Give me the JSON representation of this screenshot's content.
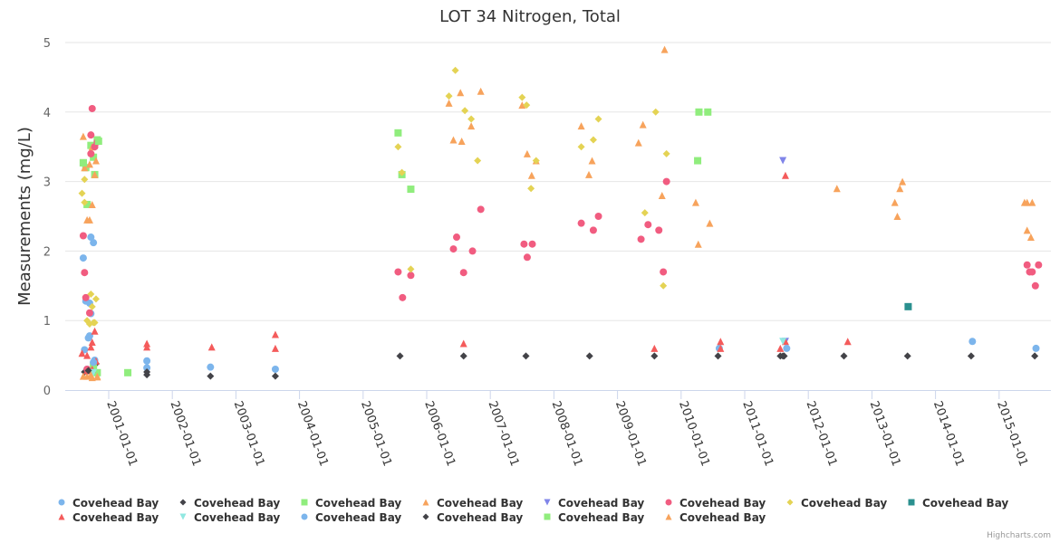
{
  "chart_data": {
    "type": "scatter",
    "title": "LOT 34 Nitrogen, Total",
    "xlabel": "",
    "ylabel": "Measurements (mg/L)",
    "ylim": [
      0,
      5
    ],
    "yticks": [
      "0",
      "1",
      "2",
      "3",
      "4",
      "5"
    ],
    "xlim": [
      "2000-04-20",
      "2015-11-20"
    ],
    "xticks": [
      "2001-01-01",
      "2002-01-01",
      "2003-01-01",
      "2004-01-01",
      "2005-01-01",
      "2006-01-01",
      "2007-01-01",
      "2008-01-01",
      "2009-01-01",
      "2010-01-01",
      "2011-01-01",
      "2012-01-01",
      "2013-01-01",
      "2014-01-01",
      "2015-01-01"
    ],
    "grid": true,
    "legend_position": "bottom",
    "credits": "Highcharts.com",
    "series": [
      {
        "name": "Covehead Bay",
        "color": "#7cb5ec",
        "symbol": "circle",
        "points": [
          [
            2000.6,
            1.9
          ],
          [
            2000.68,
            0.75
          ],
          [
            2000.7,
            1.25
          ],
          [
            2000.72,
            2.2
          ],
          [
            2000.76,
            2.12
          ],
          [
            2000.64,
            1.28
          ],
          [
            2000.7,
            0.78
          ],
          [
            2000.78,
            0.43
          ],
          [
            2000.62,
            0.58
          ],
          [
            2000.66,
            0.3
          ],
          [
            2000.72,
            1.1
          ],
          [
            2001.6,
            0.42
          ],
          [
            2001.6,
            0.32
          ],
          [
            2002.6,
            0.33
          ],
          [
            2003.62,
            0.3
          ],
          [
            2010.6,
            0.6
          ],
          [
            2014.58,
            0.7
          ]
        ]
      },
      {
        "name": "Covehead Bay",
        "color": "#434348",
        "symbol": "diamond",
        "points": [
          [
            2000.62,
            0.26
          ],
          [
            2000.72,
            0.28
          ],
          [
            2000.8,
            0.38
          ],
          [
            2001.6,
            0.26
          ],
          [
            2001.6,
            0.22
          ],
          [
            2002.6,
            0.2
          ],
          [
            2003.62,
            0.2
          ],
          [
            2005.58,
            0.49
          ],
          [
            2006.58,
            0.49
          ],
          [
            2007.56,
            0.49
          ],
          [
            2008.56,
            0.49
          ],
          [
            2009.58,
            0.49
          ],
          [
            2010.58,
            0.49
          ],
          [
            2011.56,
            0.49
          ],
          [
            2011.62,
            0.49
          ],
          [
            2012.56,
            0.49
          ],
          [
            2013.56,
            0.49
          ],
          [
            2014.56,
            0.49
          ],
          [
            2015.56,
            0.49
          ]
        ]
      },
      {
        "name": "Covehead Bay",
        "color": "#90ed7d",
        "symbol": "square",
        "points": [
          [
            2000.6,
            3.27
          ],
          [
            2000.64,
            3.2
          ],
          [
            2000.72,
            3.52
          ],
          [
            2000.76,
            3.35
          ],
          [
            2000.82,
            3.6
          ],
          [
            2000.78,
            3.1
          ],
          [
            2000.66,
            2.67
          ],
          [
            2000.76,
            0.35
          ],
          [
            2000.82,
            0.25
          ],
          [
            2001.3,
            0.25
          ],
          [
            2005.55,
            3.7
          ],
          [
            2005.61,
            3.1
          ],
          [
            2005.75,
            2.89
          ],
          [
            2010.26,
            3.3
          ],
          [
            2010.28,
            4.0
          ],
          [
            2010.42,
            4.0
          ]
        ]
      },
      {
        "name": "Covehead Bay",
        "color": "#f7a35c",
        "symbol": "triangle",
        "points": [
          [
            2000.6,
            3.65
          ],
          [
            2000.7,
            3.25
          ],
          [
            2000.8,
            3.3
          ],
          [
            2000.78,
            3.1
          ],
          [
            2000.62,
            3.2
          ],
          [
            2000.74,
            3.5
          ],
          [
            2000.66,
            2.45
          ],
          [
            2000.7,
            2.45
          ],
          [
            2000.74,
            2.67
          ],
          [
            2000.6,
            0.2
          ],
          [
            2000.66,
            0.2
          ],
          [
            2000.74,
            0.18
          ],
          [
            2000.82,
            0.2
          ],
          [
            2006.35,
            4.13
          ],
          [
            2006.53,
            4.28
          ],
          [
            2006.42,
            3.6
          ],
          [
            2006.55,
            3.58
          ],
          [
            2006.7,
            3.8
          ],
          [
            2006.85,
            4.3
          ],
          [
            2007.5,
            4.1
          ],
          [
            2007.58,
            3.4
          ],
          [
            2007.65,
            3.09
          ],
          [
            2007.72,
            3.3
          ],
          [
            2008.43,
            3.8
          ],
          [
            2008.55,
            3.1
          ],
          [
            2008.6,
            3.3
          ],
          [
            2009.33,
            3.56
          ],
          [
            2009.4,
            3.82
          ],
          [
            2009.7,
            2.8
          ],
          [
            2009.74,
            4.9
          ],
          [
            2010.23,
            2.7
          ],
          [
            2010.27,
            2.1
          ],
          [
            2010.45,
            2.4
          ],
          [
            2012.45,
            2.9
          ],
          [
            2013.36,
            2.7
          ],
          [
            2013.4,
            2.5
          ],
          [
            2013.44,
            2.9
          ],
          [
            2013.48,
            3.0
          ],
          [
            2015.4,
            2.7
          ],
          [
            2015.44,
            2.7
          ],
          [
            2015.52,
            2.7
          ],
          [
            2015.44,
            2.3
          ],
          [
            2015.5,
            2.2
          ]
        ]
      },
      {
        "name": "Covehead Bay",
        "color": "#8085e9",
        "symbol": "triangle-down",
        "points": [
          [
            2011.6,
            3.3
          ],
          [
            2011.64,
            0.7
          ]
        ]
      },
      {
        "name": "Covehead Bay",
        "color": "#f15c80",
        "symbol": "circle",
        "points": [
          [
            2000.74,
            4.05
          ],
          [
            2000.72,
            3.67
          ],
          [
            2000.82,
            3.57
          ],
          [
            2000.78,
            3.5
          ],
          [
            2000.72,
            3.4
          ],
          [
            2000.6,
            2.22
          ],
          [
            2000.62,
            1.69
          ],
          [
            2000.64,
            1.33
          ],
          [
            2000.7,
            1.11
          ],
          [
            2000.66,
            0.3
          ],
          [
            2005.55,
            1.7
          ],
          [
            2005.62,
            1.33
          ],
          [
            2005.75,
            1.65
          ],
          [
            2006.42,
            2.03
          ],
          [
            2006.47,
            2.2
          ],
          [
            2006.58,
            1.69
          ],
          [
            2006.72,
            2.0
          ],
          [
            2006.85,
            2.6
          ],
          [
            2007.53,
            2.1
          ],
          [
            2007.58,
            1.91
          ],
          [
            2007.66,
            2.1
          ],
          [
            2008.43,
            2.4
          ],
          [
            2008.62,
            2.3
          ],
          [
            2008.7,
            2.5
          ],
          [
            2009.37,
            2.17
          ],
          [
            2009.48,
            2.38
          ],
          [
            2009.65,
            2.3
          ],
          [
            2009.72,
            1.7
          ],
          [
            2009.77,
            3.0
          ],
          [
            2015.44,
            1.8
          ],
          [
            2015.48,
            1.7
          ],
          [
            2015.52,
            1.7
          ],
          [
            2015.57,
            1.5
          ],
          [
            2015.62,
            1.8
          ]
        ]
      },
      {
        "name": "Covehead Bay",
        "color": "#e4d354",
        "symbol": "diamond",
        "points": [
          [
            2000.58,
            2.83
          ],
          [
            2000.62,
            3.03
          ],
          [
            2000.62,
            2.7
          ],
          [
            2000.66,
            1.0
          ],
          [
            2000.72,
            1.38
          ],
          [
            2000.76,
            0.97
          ],
          [
            2000.8,
            1.31
          ],
          [
            2000.74,
            1.2
          ],
          [
            2000.78,
            0.97
          ],
          [
            2000.7,
            0.95
          ],
          [
            2005.55,
            3.5
          ],
          [
            2005.61,
            3.13
          ],
          [
            2005.75,
            1.74
          ],
          [
            2006.35,
            4.23
          ],
          [
            2006.45,
            4.6
          ],
          [
            2006.6,
            4.02
          ],
          [
            2006.7,
            3.9
          ],
          [
            2006.8,
            3.3
          ],
          [
            2007.5,
            4.21
          ],
          [
            2007.57,
            4.1
          ],
          [
            2007.64,
            2.9
          ],
          [
            2007.72,
            3.3
          ],
          [
            2008.43,
            3.5
          ],
          [
            2008.62,
            3.6
          ],
          [
            2008.7,
            3.9
          ],
          [
            2009.43,
            2.55
          ],
          [
            2009.6,
            4.0
          ],
          [
            2009.72,
            1.5
          ],
          [
            2009.77,
            3.4
          ]
        ]
      },
      {
        "name": "Covehead Bay",
        "color": "#2b908f",
        "symbol": "square",
        "points": [
          [
            2013.57,
            1.2
          ]
        ]
      },
      {
        "name": "Covehead Bay",
        "color": "#f45b5b",
        "symbol": "triangle",
        "points": [
          [
            2000.58,
            0.53
          ],
          [
            2000.66,
            0.5
          ],
          [
            2000.72,
            0.62
          ],
          [
            2000.74,
            0.69
          ],
          [
            2000.78,
            0.85
          ],
          [
            2000.8,
            0.42
          ],
          [
            2000.66,
            0.28
          ],
          [
            2000.74,
            0.3
          ],
          [
            2001.6,
            0.67
          ],
          [
            2001.6,
            0.62
          ],
          [
            2002.62,
            0.62
          ],
          [
            2003.62,
            0.8
          ],
          [
            2003.62,
            0.6
          ],
          [
            2006.58,
            0.67
          ],
          [
            2009.58,
            0.6
          ],
          [
            2010.62,
            0.7
          ],
          [
            2010.62,
            0.6
          ],
          [
            2011.56,
            0.6
          ],
          [
            2011.64,
            0.7
          ],
          [
            2011.64,
            3.09
          ],
          [
            2012.62,
            0.7
          ]
        ]
      },
      {
        "name": "Covehead Bay",
        "color": "#91e8e1",
        "symbol": "triangle-down",
        "points": [
          [
            2011.6,
            0.7
          ],
          [
            2000.76,
            0.25
          ]
        ]
      },
      {
        "name": "Covehead Bay",
        "color": "#7cb5ec",
        "symbol": "circle",
        "points": [
          [
            2011.66,
            0.6
          ],
          [
            2015.58,
            0.6
          ],
          [
            2000.76,
            0.4
          ]
        ]
      },
      {
        "name": "Covehead Bay",
        "color": "#434348",
        "symbol": "diamond",
        "points": [
          [
            2011.6,
            0.49
          ],
          [
            2000.68,
            0.28
          ]
        ]
      },
      {
        "name": "Covehead Bay",
        "color": "#90ed7d",
        "symbol": "square",
        "points": [
          [
            2000.6,
            3.27
          ],
          [
            2000.84,
            3.58
          ]
        ]
      },
      {
        "name": "Covehead Bay",
        "color": "#f7a35c",
        "symbol": "triangle",
        "points": [
          [
            2000.72,
            0.22
          ],
          [
            2000.82,
            0.19
          ]
        ]
      }
    ]
  },
  "legend_items": [
    "Covehead Bay",
    "Covehead Bay",
    "Covehead Bay",
    "Covehead Bay",
    "Covehead Bay",
    "Covehead Bay",
    "Covehead Bay",
    "Covehead Bay",
    "Covehead Bay",
    "Covehead Bay",
    "Covehead Bay",
    "Covehead Bay",
    "Covehead Bay",
    "Covehead Bay"
  ]
}
